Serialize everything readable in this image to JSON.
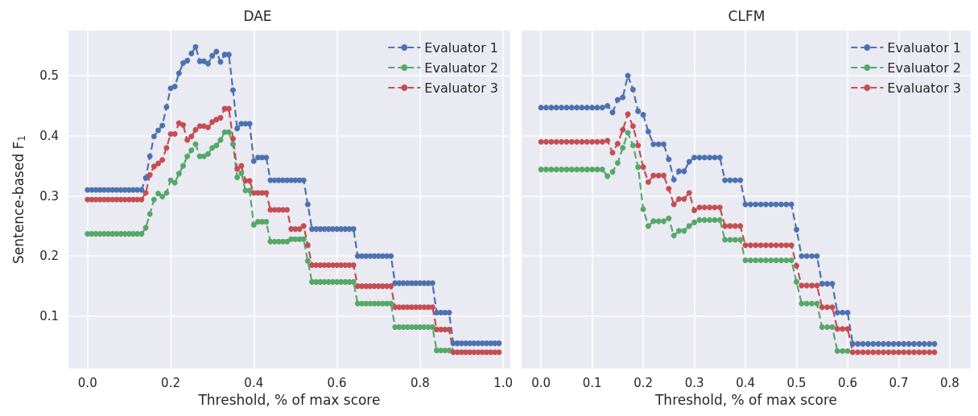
{
  "chart_data": [
    {
      "type": "line",
      "title": "DAE",
      "xlabel": "Threshold, % of max score",
      "ylabel": "Sentence-based F$_{1}$",
      "marker": "circle",
      "line_style": "dashed",
      "grid": true,
      "legend": "top right",
      "xlim": [
        -0.046,
        1.017
      ],
      "ylim": [
        0.013,
        0.575
      ],
      "xticks": [
        {
          "value": 0,
          "label": "0.0"
        },
        {
          "value": 0.2,
          "label": "0.2"
        },
        {
          "value": 0.4,
          "label": "0.4"
        },
        {
          "value": 0.6,
          "label": "0.6"
        },
        {
          "value": 0.8,
          "label": "0.8"
        },
        {
          "value": 1,
          "label": "1.0"
        }
      ],
      "yticks": [
        0.1,
        0.2,
        0.3,
        0.4,
        0.5
      ],
      "x": [
        0,
        0.01,
        0.02,
        0.03,
        0.04,
        0.05,
        0.06,
        0.07,
        0.08,
        0.09,
        0.1,
        0.11,
        0.12,
        0.13,
        0.14,
        0.15,
        0.16,
        0.17,
        0.18,
        0.19,
        0.2,
        0.21,
        0.22,
        0.23,
        0.24,
        0.25,
        0.26,
        0.27,
        0.28,
        0.29,
        0.3,
        0.31,
        0.32,
        0.33,
        0.34,
        0.35,
        0.36,
        0.37,
        0.38,
        0.39,
        0.4,
        0.41,
        0.42,
        0.43,
        0.44,
        0.45,
        0.46,
        0.47,
        0.48,
        0.49,
        0.5,
        0.51,
        0.52,
        0.53,
        0.54,
        0.55,
        0.56,
        0.57,
        0.58,
        0.59,
        0.6,
        0.61,
        0.62,
        0.63,
        0.64,
        0.65,
        0.66,
        0.67,
        0.68,
        0.69,
        0.7,
        0.71,
        0.72,
        0.73,
        0.74,
        0.75,
        0.76,
        0.77,
        0.78,
        0.79,
        0.8,
        0.81,
        0.82,
        0.83,
        0.84,
        0.85,
        0.86,
        0.87,
        0.88,
        0.89,
        0.9,
        0.91,
        0.92,
        0.93,
        0.94,
        0.95,
        0.96,
        0.97,
        0.98,
        0.99
      ],
      "series": [
        {
          "name": "Evaluator 1",
          "color": "#4c72b0",
          "values": [
            0.31,
            0.31,
            0.31,
            0.31,
            0.31,
            0.31,
            0.31,
            0.31,
            0.31,
            0.31,
            0.31,
            0.31,
            0.31,
            0.31,
            0.33,
            0.366,
            0.399,
            0.409,
            0.417,
            0.448,
            0.479,
            0.482,
            0.504,
            0.521,
            0.525,
            0.537,
            0.548,
            0.524,
            0.524,
            0.52,
            0.533,
            0.54,
            0.523,
            0.535,
            0.535,
            0.476,
            0.412,
            0.42,
            0.42,
            0.42,
            0.358,
            0.364,
            0.364,
            0.364,
            0.326,
            0.326,
            0.326,
            0.326,
            0.326,
            0.326,
            0.326,
            0.326,
            0.326,
            0.286,
            0.245,
            0.245,
            0.245,
            0.245,
            0.245,
            0.245,
            0.245,
            0.245,
            0.245,
            0.245,
            0.245,
            0.2,
            0.2,
            0.2,
            0.2,
            0.2,
            0.2,
            0.2,
            0.2,
            0.2,
            0.155,
            0.155,
            0.155,
            0.155,
            0.155,
            0.155,
            0.155,
            0.155,
            0.155,
            0.155,
            0.106,
            0.106,
            0.106,
            0.106,
            0.055,
            0.055,
            0.055,
            0.055,
            0.055,
            0.055,
            0.055,
            0.055,
            0.055,
            0.055,
            0.055,
            0.055
          ]
        },
        {
          "name": "Evaluator 2",
          "color": "#55a868",
          "values": [
            0.237,
            0.237,
            0.237,
            0.237,
            0.237,
            0.237,
            0.237,
            0.237,
            0.237,
            0.237,
            0.237,
            0.237,
            0.237,
            0.237,
            0.247,
            0.27,
            0.294,
            0.304,
            0.299,
            0.305,
            0.326,
            0.322,
            0.337,
            0.35,
            0.366,
            0.376,
            0.386,
            0.366,
            0.366,
            0.37,
            0.38,
            0.384,
            0.393,
            0.406,
            0.406,
            0.386,
            0.331,
            0.338,
            0.309,
            0.309,
            0.252,
            0.257,
            0.257,
            0.257,
            0.224,
            0.224,
            0.224,
            0.224,
            0.224,
            0.228,
            0.228,
            0.228,
            0.228,
            0.192,
            0.157,
            0.157,
            0.157,
            0.157,
            0.157,
            0.157,
            0.157,
            0.157,
            0.157,
            0.157,
            0.157,
            0.121,
            0.121,
            0.121,
            0.121,
            0.121,
            0.121,
            0.121,
            0.121,
            0.121,
            0.082,
            0.082,
            0.082,
            0.082,
            0.082,
            0.082,
            0.082,
            0.082,
            0.082,
            0.082,
            0.043,
            0.043,
            0.043,
            0.043,
            null,
            null,
            null,
            null,
            null,
            null,
            null,
            null,
            null,
            null,
            null,
            null
          ]
        },
        {
          "name": "Evaluator 3",
          "color": "#c44e52",
          "values": [
            0.294,
            0.294,
            0.294,
            0.294,
            0.294,
            0.294,
            0.294,
            0.294,
            0.294,
            0.294,
            0.294,
            0.294,
            0.294,
            0.294,
            0.305,
            0.335,
            0.349,
            0.354,
            0.36,
            0.38,
            0.403,
            0.403,
            0.421,
            0.418,
            0.393,
            0.399,
            0.41,
            0.416,
            0.416,
            0.414,
            0.423,
            0.427,
            0.43,
            0.445,
            0.445,
            0.395,
            0.345,
            0.35,
            0.325,
            0.325,
            0.305,
            0.305,
            0.305,
            0.305,
            0.277,
            0.277,
            0.277,
            0.277,
            0.277,
            0.245,
            0.245,
            0.245,
            0.25,
            0.218,
            0.185,
            0.185,
            0.185,
            0.185,
            0.185,
            0.185,
            0.185,
            0.185,
            0.185,
            0.185,
            0.185,
            0.15,
            0.15,
            0.15,
            0.15,
            0.15,
            0.15,
            0.15,
            0.15,
            0.15,
            0.115,
            0.115,
            0.115,
            0.115,
            0.115,
            0.115,
            0.115,
            0.115,
            0.115,
            0.115,
            0.078,
            0.078,
            0.078,
            0.078,
            0.04,
            0.04,
            0.04,
            0.04,
            0.04,
            0.04,
            0.04,
            0.04,
            0.04,
            0.04,
            0.04,
            0.04
          ]
        }
      ]
    },
    {
      "type": "line",
      "title": "CLFM",
      "xlabel": "Threshold, % of max score",
      "marker": "circle",
      "line_style": "dashed",
      "grid": true,
      "legend": "top right",
      "tick_labels": "x",
      "xlim": [
        -0.038,
        0.841
      ],
      "ylim": [
        0.013,
        0.575
      ],
      "xticks": [
        {
          "value": 0,
          "label": "0.0"
        },
        {
          "value": 0.1,
          "label": "0.1"
        },
        {
          "value": 0.2,
          "label": "0.2"
        },
        {
          "value": 0.3,
          "label": "0.3"
        },
        {
          "value": 0.4,
          "label": "0.4"
        },
        {
          "value": 0.5,
          "label": "0.5"
        },
        {
          "value": 0.6,
          "label": "0.6"
        },
        {
          "value": 0.7,
          "label": "0.7"
        },
        {
          "value": 0.8,
          "label": "0.8"
        }
      ],
      "yticks": [
        0.1,
        0.2,
        0.3,
        0.4,
        0.5
      ],
      "x": [
        0,
        0.01,
        0.02,
        0.03,
        0.04,
        0.05,
        0.06,
        0.07,
        0.08,
        0.09,
        0.1,
        0.11,
        0.12,
        0.13,
        0.14,
        0.15,
        0.16,
        0.17,
        0.18,
        0.19,
        0.2,
        0.21,
        0.22,
        0.23,
        0.24,
        0.25,
        0.26,
        0.27,
        0.28,
        0.29,
        0.3,
        0.31,
        0.32,
        0.33,
        0.34,
        0.35,
        0.36,
        0.37,
        0.38,
        0.39,
        0.4,
        0.41,
        0.42,
        0.43,
        0.44,
        0.45,
        0.46,
        0.47,
        0.48,
        0.49,
        0.5,
        0.51,
        0.52,
        0.53,
        0.54,
        0.55,
        0.56,
        0.57,
        0.58,
        0.59,
        0.6,
        0.61,
        0.62,
        0.63,
        0.64,
        0.65,
        0.66,
        0.67,
        0.68,
        0.69,
        0.7,
        0.71,
        0.72,
        0.73,
        0.74,
        0.75,
        0.76,
        0.77
      ],
      "series": [
        {
          "name": "Evaluator 1",
          "color": "#4c72b0",
          "values": [
            0.447,
            0.447,
            0.447,
            0.447,
            0.447,
            0.447,
            0.447,
            0.447,
            0.447,
            0.447,
            0.447,
            0.447,
            0.447,
            0.45,
            0.439,
            0.46,
            0.464,
            0.5,
            0.477,
            0.441,
            0.435,
            0.407,
            0.386,
            0.386,
            0.386,
            0.361,
            0.327,
            0.341,
            0.341,
            0.357,
            0.364,
            0.364,
            0.364,
            0.364,
            0.364,
            0.364,
            0.326,
            0.326,
            0.326,
            0.326,
            0.286,
            0.286,
            0.286,
            0.286,
            0.286,
            0.286,
            0.286,
            0.286,
            0.286,
            0.286,
            0.244,
            0.2,
            0.2,
            0.2,
            0.2,
            0.154,
            0.154,
            0.154,
            0.106,
            0.106,
            0.106,
            0.054,
            0.054,
            0.054,
            0.054,
            0.054,
            0.054,
            0.054,
            0.054,
            0.054,
            0.054,
            0.054,
            0.054,
            0.054,
            0.054,
            0.054,
            0.054,
            0.054
          ]
        },
        {
          "name": "Evaluator 2",
          "color": "#55a868",
          "values": [
            0.344,
            0.344,
            0.344,
            0.344,
            0.344,
            0.344,
            0.344,
            0.344,
            0.344,
            0.344,
            0.344,
            0.344,
            0.344,
            0.333,
            0.34,
            0.355,
            0.38,
            0.405,
            0.384,
            0.348,
            0.278,
            0.25,
            0.258,
            0.258,
            0.258,
            0.263,
            0.234,
            0.242,
            0.242,
            0.25,
            0.256,
            0.26,
            0.26,
            0.26,
            0.26,
            0.26,
            0.227,
            0.227,
            0.227,
            0.227,
            0.193,
            0.193,
            0.193,
            0.193,
            0.193,
            0.193,
            0.193,
            0.193,
            0.193,
            0.193,
            0.157,
            0.121,
            0.121,
            0.121,
            0.121,
            0.082,
            0.082,
            0.082,
            0.042,
            0.042,
            0.042,
            null,
            null,
            null,
            null,
            null,
            null,
            null,
            null,
            null,
            null,
            null,
            null,
            null,
            null,
            null,
            null,
            null
          ]
        },
        {
          "name": "Evaluator 3",
          "color": "#c44e52",
          "values": [
            0.39,
            0.39,
            0.39,
            0.39,
            0.39,
            0.39,
            0.39,
            0.39,
            0.39,
            0.39,
            0.39,
            0.39,
            0.39,
            0.392,
            0.372,
            0.387,
            0.41,
            0.436,
            0.416,
            0.384,
            0.348,
            0.323,
            0.334,
            0.334,
            0.334,
            0.312,
            0.286,
            0.295,
            0.295,
            0.305,
            0.276,
            0.281,
            0.281,
            0.281,
            0.281,
            0.281,
            0.25,
            0.25,
            0.25,
            0.25,
            0.218,
            0.218,
            0.218,
            0.218,
            0.218,
            0.218,
            0.218,
            0.218,
            0.218,
            0.218,
            0.184,
            0.151,
            0.151,
            0.151,
            0.151,
            0.115,
            0.115,
            0.115,
            0.079,
            0.079,
            0.079,
            0.04,
            0.04,
            0.04,
            0.04,
            0.04,
            0.04,
            0.04,
            0.04,
            0.04,
            0.04,
            0.04,
            0.04,
            0.04,
            0.04,
            0.04,
            0.04,
            0.04
          ]
        }
      ]
    }
  ]
}
